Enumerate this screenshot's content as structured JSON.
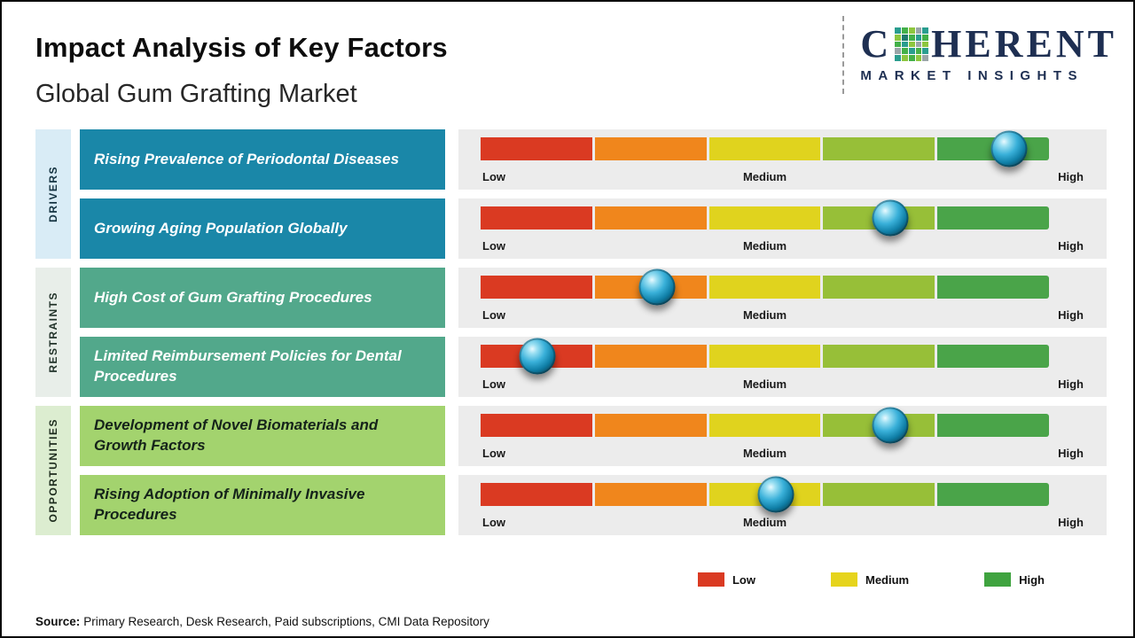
{
  "header": {
    "title": "Impact Analysis of Key Factors",
    "subtitle": "Global Gum Grafting Market"
  },
  "logo": {
    "word_start": "C",
    "word_end": "HERENT",
    "tagline": "MARKET INSIGHTS",
    "navy": "#1e2f52",
    "mosaic_colors": [
      "#2a9d8f",
      "#43b049",
      "#8dc63f",
      "#9aa5a8",
      "#2a9d8f",
      "#8dc63f",
      "#1f7a6d",
      "#43b049",
      "#2a9d8f",
      "#43b049",
      "#43b049",
      "#2a9d8f",
      "#8dc63f",
      "#9aa5a8",
      "#8dc63f",
      "#9aa5a8",
      "#43b049",
      "#2a9d8f",
      "#43b049",
      "#2a9d8f",
      "#2a9d8f",
      "#8dc63f",
      "#43b049",
      "#8dc63f",
      "#9aa5a8"
    ]
  },
  "groups": [
    {
      "label": "DRIVERS",
      "strip_bg": "#d9ecf6",
      "strip_text": "#12313f",
      "factor_bg": "#1a87a8",
      "factor_text": "#ffffff",
      "rows": [
        {
          "factor": "Rising Prevalence of Periodontal Diseases",
          "impact_percent": 93,
          "impact_level": "High"
        },
        {
          "factor": "Growing Aging Population Globally",
          "impact_percent": 72,
          "impact_level": "Medium-High"
        }
      ]
    },
    {
      "label": "RESTRAINTS",
      "strip_bg": "#e8eee9",
      "strip_text": "#22332a",
      "factor_bg": "#52a88b",
      "factor_text": "#ffffff",
      "rows": [
        {
          "factor": "High Cost of Gum Grafting Procedures",
          "impact_percent": 31,
          "impact_level": "Low-Medium"
        },
        {
          "factor": "Limited Reimbursement Policies for Dental Procedures",
          "impact_percent": 10,
          "impact_level": "Low"
        }
      ]
    },
    {
      "label": "OPPORTUNITIES",
      "strip_bg": "#dcedd0",
      "strip_text": "#1c2b1c",
      "factor_bg": "#a3d36e",
      "factor_text": "#15231a",
      "rows": [
        {
          "factor": "Development of Novel Biomaterials and Growth Factors",
          "impact_percent": 72,
          "impact_level": "Medium-High"
        },
        {
          "factor": "Rising Adoption of Minimally Invasive Procedures",
          "impact_percent": 52,
          "impact_level": "Medium"
        }
      ]
    }
  ],
  "scale": {
    "labels": [
      "Low",
      "Medium",
      "High"
    ],
    "segment_colors": [
      "#da3a22",
      "#f0861c",
      "#e0d31e",
      "#97bf38",
      "#4aa449"
    ],
    "track_bg": "#ececec"
  },
  "legend": [
    {
      "label": "Low",
      "color": "#da3a22"
    },
    {
      "label": "Medium",
      "color": "#e6d41c"
    },
    {
      "label": "High",
      "color": "#3fa33f"
    }
  ],
  "source": {
    "prefix": "Source:",
    "text": "Primary Research, Desk Research, Paid subscriptions, CMI Data Repository"
  }
}
